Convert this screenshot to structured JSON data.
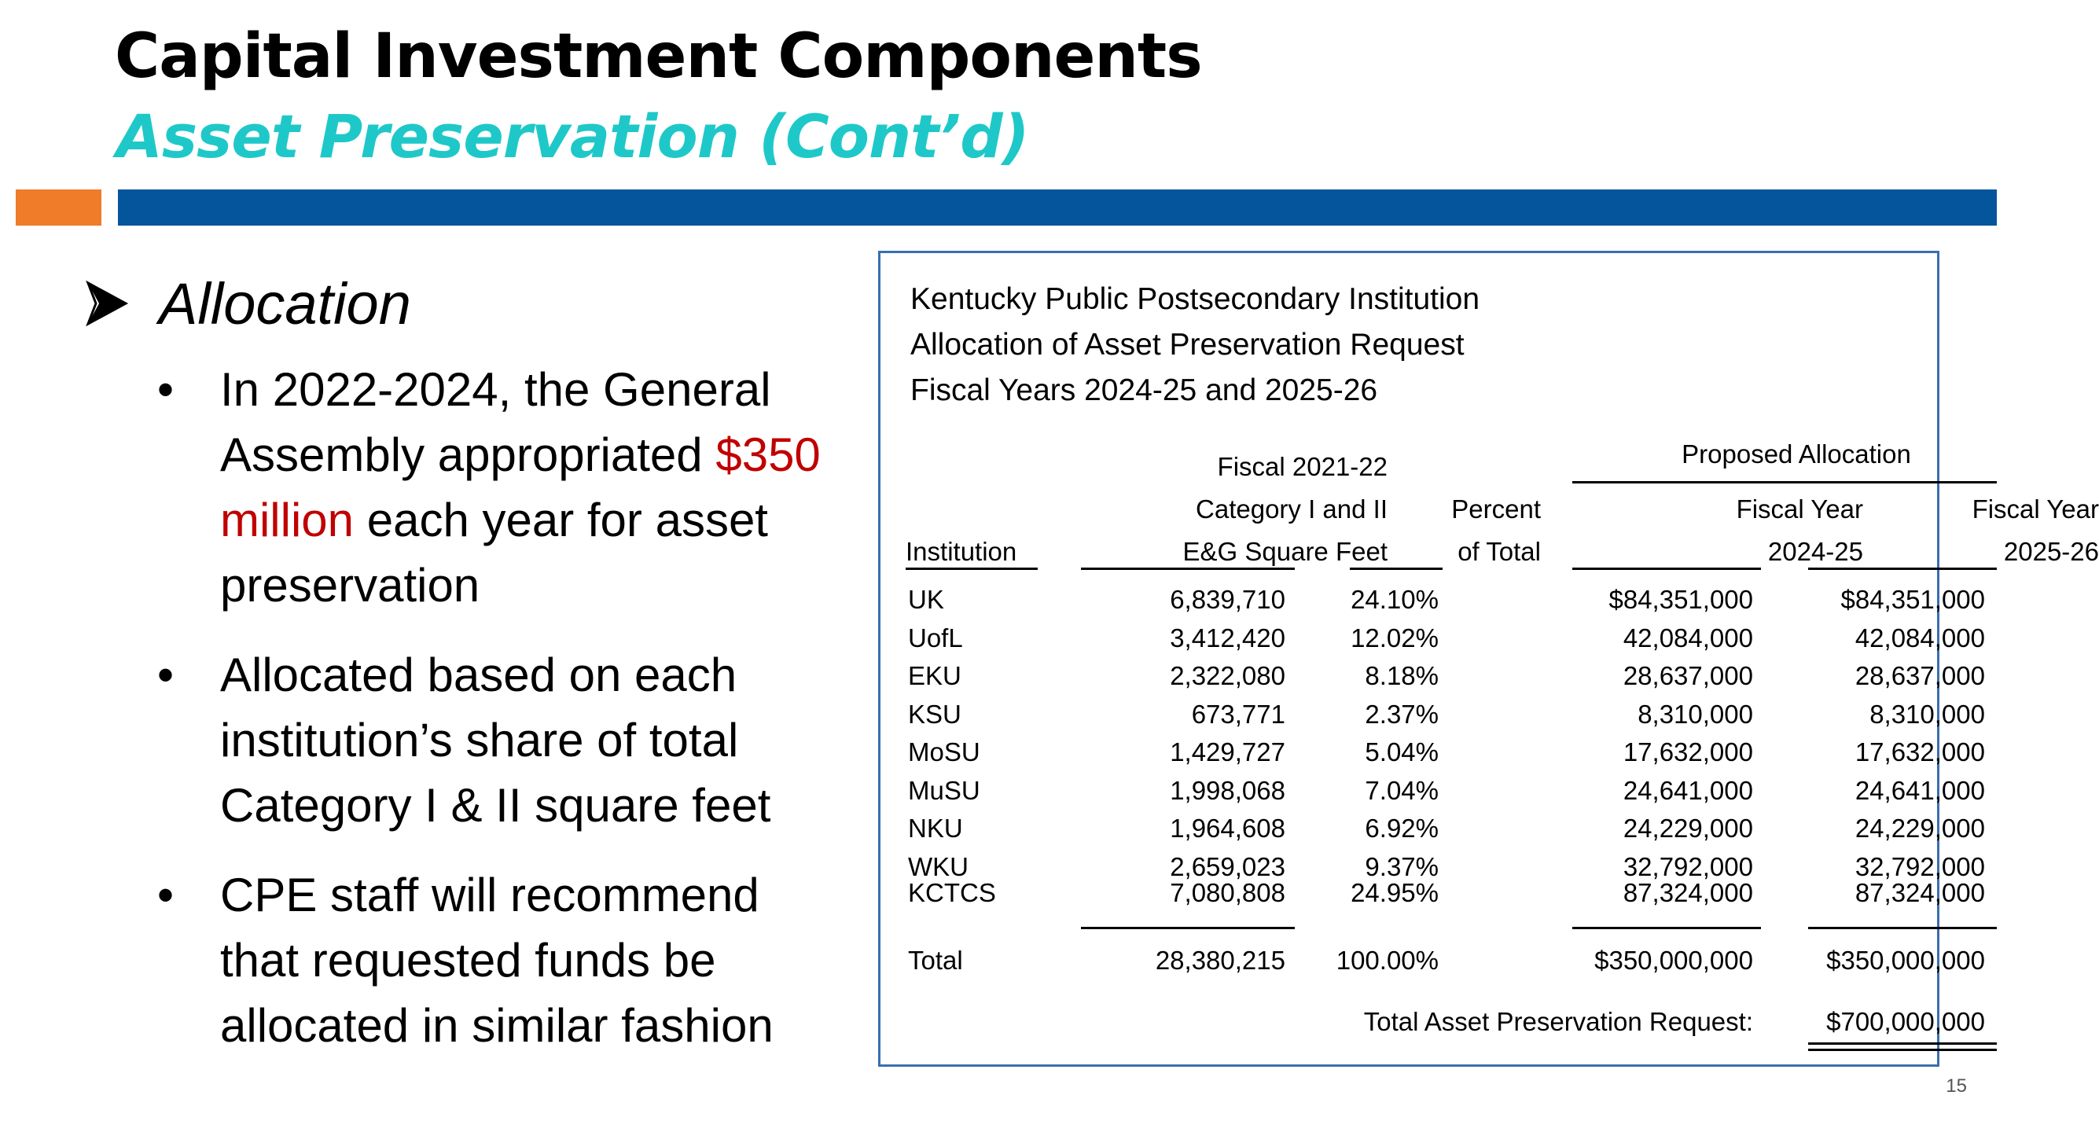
{
  "slide": {
    "title": "Capital Investment Components",
    "subtitle": "Asset Preservation (Cont’d)",
    "page_number": "15",
    "colors": {
      "subtitle": "#1fc8c8",
      "bar_orange": "#f07b28",
      "bar_blue": "#04559c",
      "highlight": "#c00000",
      "table_border": "#3a6fb0"
    }
  },
  "content": {
    "heading": "Allocation",
    "heading_icon": "arrow-bullet-icon",
    "bullets": [
      {
        "pre": "In 2022-2024, the General Assembly appropriated ",
        "highlight": "$350 million",
        "post": " each year for asset preservation"
      },
      {
        "pre": "Allocated based on each institution’s share of total Category I & II square feet",
        "highlight": "",
        "post": ""
      },
      {
        "pre": "CPE staff will recommend that requested funds be allocated in similar fashion",
        "highlight": "",
        "post": ""
      }
    ]
  },
  "table": {
    "title_lines": [
      "Kentucky Public Postsecondary Institution",
      "Allocation of Asset Preservation Request",
      "Fiscal Years 2024-25 and 2025-26"
    ],
    "group_header": "Proposed Allocation",
    "headers": {
      "institution": "Institution",
      "sqft": [
        "Fiscal 2021-22",
        "Category I and II",
        "E&G Square Feet"
      ],
      "pct": [
        "Percent",
        "of Total"
      ],
      "fy1": [
        "Fiscal Year",
        "2024-25"
      ],
      "fy2": [
        "Fiscal Year",
        "2025-26"
      ]
    },
    "rows": [
      {
        "institution": "UK",
        "sqft": "6,839,710",
        "pct": "24.10%",
        "fy1": "$84,351,000",
        "fy2": "$84,351,000"
      },
      {
        "institution": "UofL",
        "sqft": "3,412,420",
        "pct": "12.02%",
        "fy1": "42,084,000",
        "fy2": "42,084,000"
      },
      {
        "institution": "EKU",
        "sqft": "2,322,080",
        "pct": "8.18%",
        "fy1": "28,637,000",
        "fy2": "28,637,000"
      },
      {
        "institution": "KSU",
        "sqft": "673,771",
        "pct": "2.37%",
        "fy1": "8,310,000",
        "fy2": "8,310,000"
      },
      {
        "institution": "MoSU",
        "sqft": "1,429,727",
        "pct": "5.04%",
        "fy1": "17,632,000",
        "fy2": "17,632,000"
      },
      {
        "institution": "MuSU",
        "sqft": "1,998,068",
        "pct": "7.04%",
        "fy1": "24,641,000",
        "fy2": "24,641,000"
      },
      {
        "institution": "NKU",
        "sqft": "1,964,608",
        "pct": "6.92%",
        "fy1": "24,229,000",
        "fy2": "24,229,000"
      },
      {
        "institution": "WKU",
        "sqft": "2,659,023",
        "pct": "9.37%",
        "fy1": "32,792,000",
        "fy2": "32,792,000"
      },
      {
        "institution": "KCTCS",
        "sqft": "7,080,808",
        "pct": "24.95%",
        "fy1": "87,324,000",
        "fy2": "87,324,000"
      }
    ],
    "total": {
      "institution": "Total",
      "sqft": "28,380,215",
      "pct": "100.00%",
      "fy1": "$350,000,000",
      "fy2": "$350,000,000"
    },
    "grand_total": {
      "label": "Total Asset Preservation Request:",
      "value": "$700,000,000"
    }
  }
}
